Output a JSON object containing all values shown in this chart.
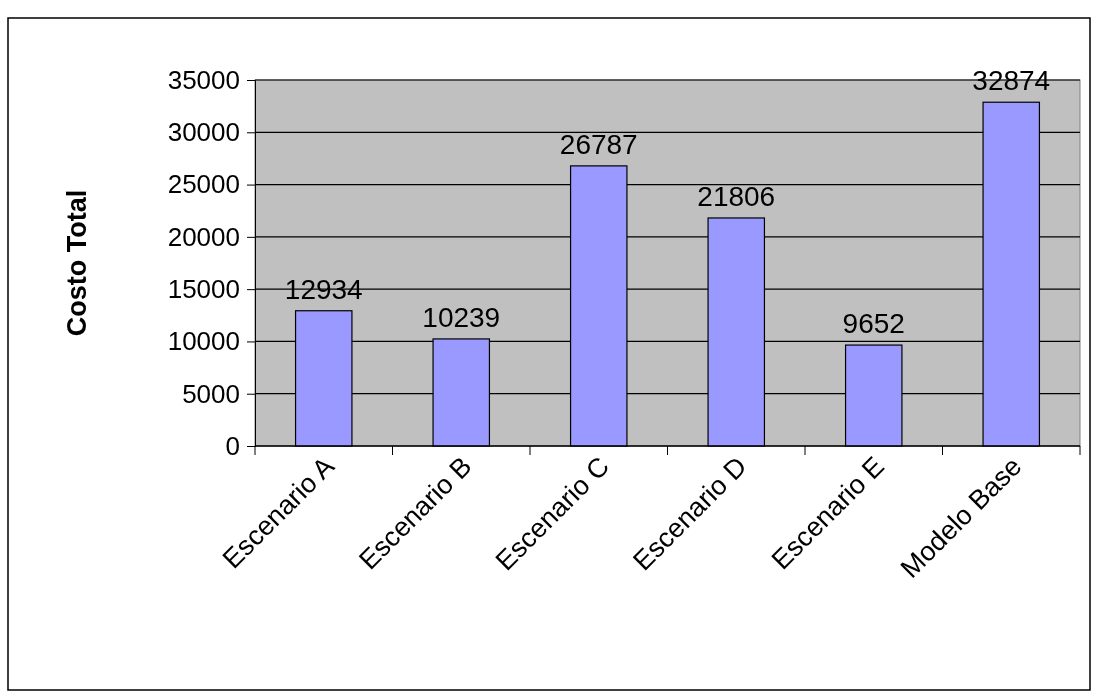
{
  "chart_data": {
    "type": "bar",
    "ylabel": "Costo Total",
    "categories": [
      "Escenario A",
      "Escenario B",
      "Escenario C",
      "Escenario D",
      "Escenario E",
      "Modelo Base"
    ],
    "values": [
      12934,
      10239,
      26787,
      21806,
      9652,
      32874
    ],
    "color": "#9999ff",
    "ylim": [
      0,
      35000
    ],
    "yticks": [
      0,
      5000,
      10000,
      15000,
      20000,
      25000,
      30000,
      35000
    ],
    "grid": "y",
    "data_labels": true
  }
}
